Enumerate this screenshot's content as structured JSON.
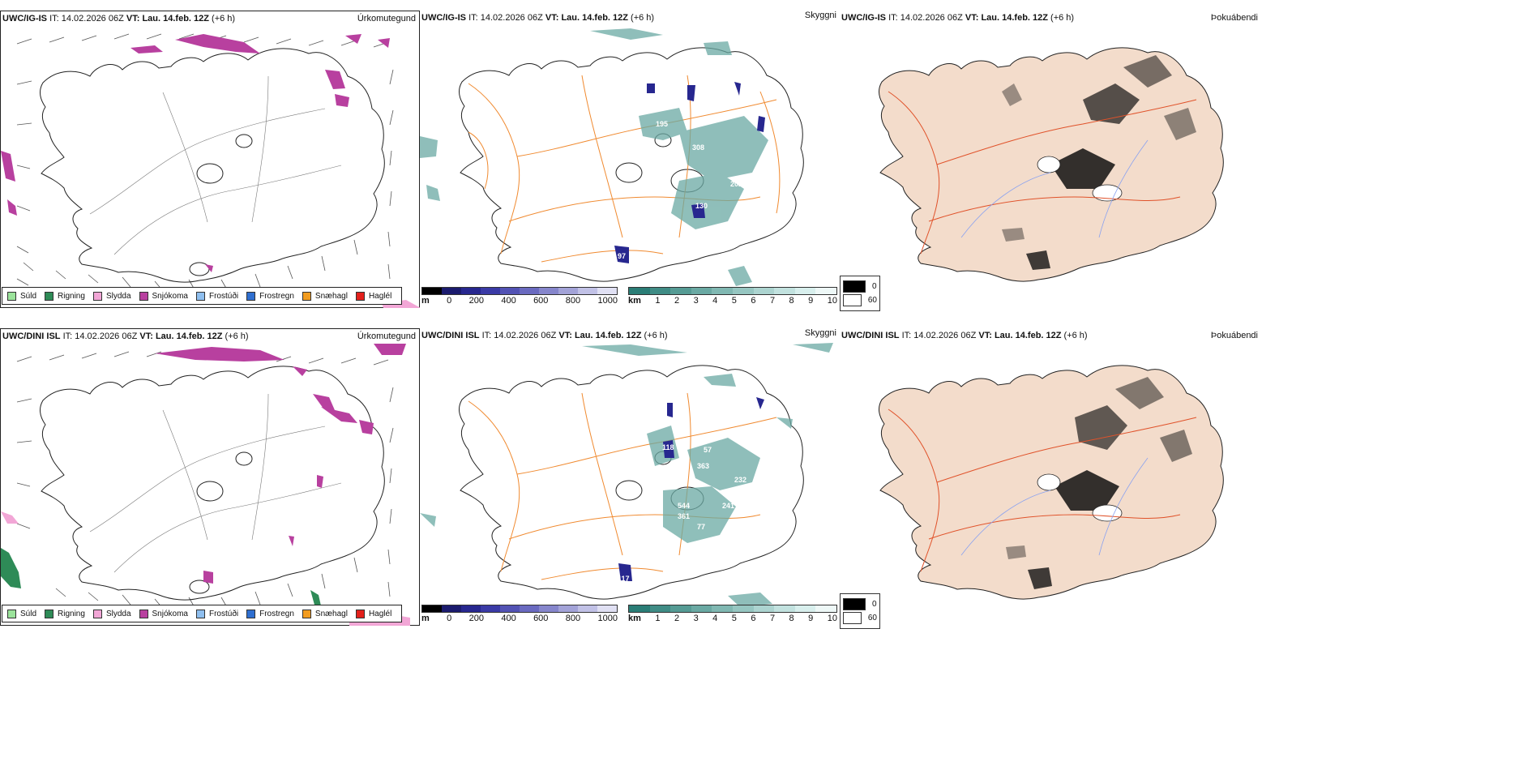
{
  "rows": [
    {
      "model": "UWC/IG-IS",
      "it_label": "IT:",
      "it_value": "14.02.2026 06Z",
      "vt_label": "VT:",
      "vt_value": "Lau. 14.feb. 12Z",
      "lead": "(+6 h)",
      "numbers": [
        "195",
        "308",
        "432",
        "222",
        "202",
        "130",
        "97"
      ]
    },
    {
      "model": "UWC/DINI ISL",
      "it_label": "IT:",
      "it_value": "14.02.2026 06Z",
      "vt_label": "VT:",
      "vt_value": "Lau. 14.feb. 12Z",
      "lead": "(+6 h)",
      "numbers": [
        "332",
        "118",
        "57",
        "363",
        "232",
        "137",
        "544",
        "241",
        "361",
        "77",
        "117"
      ]
    }
  ],
  "panel_titles": {
    "precip": "Úrkomutegund",
    "visibility": "Skyggni",
    "fog": "Þokuábendi"
  },
  "precip_legend": [
    {
      "label": "Súld",
      "color": "#9be39b"
    },
    {
      "label": "Rigning",
      "color": "#2e8b57"
    },
    {
      "label": "Slydda",
      "color": "#f2a6d6"
    },
    {
      "label": "Snjókoma",
      "color": "#b8409f"
    },
    {
      "label": "Frostúði",
      "color": "#8fbfef"
    },
    {
      "label": "Frostregn",
      "color": "#2f6fd0"
    },
    {
      "label": "Snæhagl",
      "color": "#f29c1f"
    },
    {
      "label": "Haglél",
      "color": "#e3201b"
    }
  ],
  "cloud_base_scale": {
    "unit": "m",
    "ticks": [
      "0",
      "200",
      "400",
      "600",
      "800",
      "1000"
    ],
    "colors": [
      "#000000",
      "#1b1b6e",
      "#27278f",
      "#3a3aa6",
      "#5252b4",
      "#6a6ac0",
      "#8686cc",
      "#a3a3d8",
      "#c1c1e6",
      "#e0e0f3"
    ]
  },
  "visibility_scale": {
    "unit": "km",
    "ticks": [
      "1",
      "2",
      "3",
      "4",
      "5",
      "6",
      "7",
      "8",
      "9",
      "10"
    ],
    "colors": [
      "#2a7d76",
      "#3f8c85",
      "#559b94",
      "#6aa9a3",
      "#80b8b2",
      "#96c6c1",
      "#acd4d0",
      "#c2e2df",
      "#d8efed",
      "#eef8f7"
    ]
  },
  "fog_legend": [
    {
      "label": "0",
      "color": "#000000"
    },
    {
      "label": "60",
      "color": "#ffffff"
    }
  ]
}
